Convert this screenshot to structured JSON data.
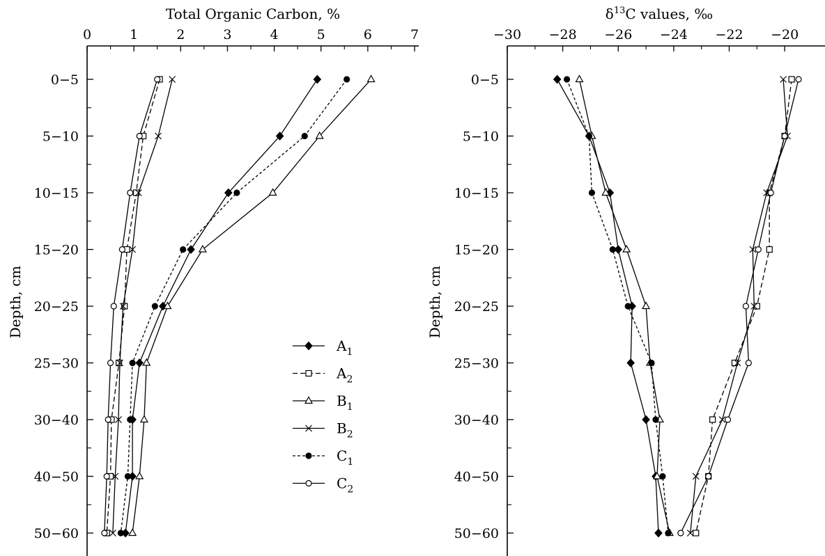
{
  "chart_data": [
    {
      "type": "line",
      "title": "",
      "xlabel": "Total Organic Carbon, %",
      "ylabel": "Depth, cm",
      "xlim": [
        0,
        7
      ],
      "x_ticks": [
        "0",
        "1",
        "2",
        "3",
        "4",
        "5",
        "6",
        "7"
      ],
      "categories": [
        "0−5",
        "5−10",
        "10−15",
        "15−20",
        "20−25",
        "25−30",
        "30−40",
        "40−50",
        "50−60"
      ],
      "series": [
        {
          "key": "A",
          "sub": "1",
          "values": [
            4.92,
            4.12,
            3.02,
            2.22,
            1.62,
            1.12,
            0.97,
            0.97,
            0.82
          ]
        },
        {
          "key": "A",
          "sub": "2",
          "values": [
            1.55,
            1.2,
            1.05,
            0.85,
            0.8,
            0.68,
            0.52,
            0.5,
            0.42
          ]
        },
        {
          "key": "B",
          "sub": "1",
          "values": [
            6.07,
            4.97,
            3.97,
            2.47,
            1.72,
            1.27,
            1.22,
            1.12,
            0.97
          ]
        },
        {
          "key": "B",
          "sub": "2",
          "values": [
            1.82,
            1.52,
            1.1,
            0.97,
            0.77,
            0.7,
            0.67,
            0.6,
            0.55
          ]
        },
        {
          "key": "C",
          "sub": "1",
          "values": [
            5.55,
            4.65,
            3.2,
            2.05,
            1.45,
            0.97,
            0.92,
            0.87,
            0.72
          ]
        },
        {
          "key": "C",
          "sub": "2",
          "values": [
            1.5,
            1.12,
            0.92,
            0.75,
            0.57,
            0.5,
            0.45,
            0.42,
            0.37
          ]
        }
      ],
      "legend": {
        "position": "bottom-right",
        "entries": [
          {
            "label": "A",
            "sub": "1"
          },
          {
            "label": "A",
            "sub": "2"
          },
          {
            "label": "B",
            "sub": "1"
          },
          {
            "label": "B",
            "sub": "2"
          },
          {
            "label": "C",
            "sub": "1"
          },
          {
            "label": "C",
            "sub": "2"
          }
        ]
      }
    },
    {
      "type": "line",
      "title": "",
      "xlabel_prefix": "δ",
      "xlabel_sup": "13",
      "xlabel_rest": "C values, ‰",
      "ylabel": "Depth, cm",
      "xlim": [
        -30,
        -19.3
      ],
      "x_ticks": [
        "−30",
        "−28",
        "−26",
        "−24",
        "−22",
        "−20"
      ],
      "x_tick_values": [
        -30,
        -28,
        -26,
        -24,
        -22,
        -20
      ],
      "categories": [
        "0−5",
        "5−10",
        "10−15",
        "15−20",
        "20−25",
        "25−30",
        "30−40",
        "40−50",
        "50−60"
      ],
      "series": [
        {
          "key": "A",
          "sub": "1",
          "values": [
            -28.2,
            -27.05,
            -26.3,
            -26.0,
            -25.5,
            -25.55,
            -25.0,
            -24.65,
            -24.55
          ]
        },
        {
          "key": "A",
          "sub": "2",
          "values": [
            -19.75,
            -20.0,
            -20.55,
            -20.55,
            -21.0,
            -21.8,
            -22.6,
            -22.75,
            -23.2
          ]
        },
        {
          "key": "B",
          "sub": "1",
          "values": [
            -27.4,
            -26.95,
            -26.45,
            -25.7,
            -25.0,
            -24.85,
            -24.5,
            -24.6,
            -24.15
          ]
        },
        {
          "key": "B",
          "sub": "2",
          "values": [
            -20.05,
            -19.9,
            -20.65,
            -21.15,
            -21.1,
            -21.7,
            -22.25,
            -23.2,
            -23.4
          ]
        },
        {
          "key": "C",
          "sub": "1",
          "values": [
            -27.85,
            -27.05,
            -26.95,
            -26.2,
            -25.65,
            -24.8,
            -24.65,
            -24.4,
            -24.2
          ]
        },
        {
          "key": "C",
          "sub": "2",
          "values": [
            -19.5,
            -20.0,
            -20.5,
            -20.95,
            -21.4,
            -21.3,
            -22.05,
            -22.75,
            -23.75
          ]
        }
      ]
    }
  ]
}
